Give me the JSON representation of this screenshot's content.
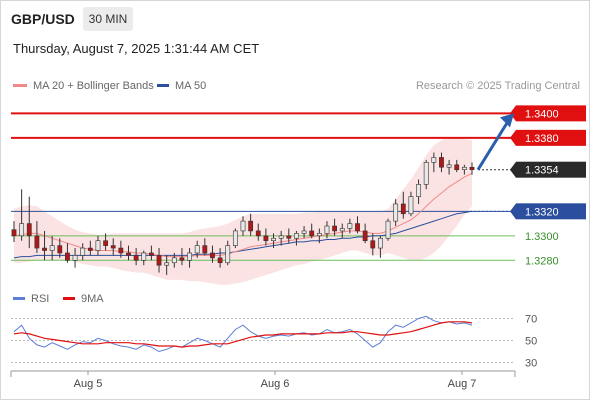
{
  "header": {
    "symbol": "GBP/USD",
    "timeframe": "30 MIN",
    "datetime": "Thursday, August 7, 2025 1:31:44 AM CET"
  },
  "legend": {
    "ma20_label": "MA 20 + Bollinger Bands",
    "ma50_label": "MA 50",
    "copyright": "Research © 2025 Trading Central",
    "rsi_label": "RSI",
    "rsi_ma_label": "9MA"
  },
  "colors": {
    "ma20": "#f08a8a",
    "ma50": "#2b4f9e",
    "bollinger_fill": "#fbe3e3",
    "resistance": "#e01010",
    "support": "#2b4f9e",
    "target": "#6bbf5b",
    "arrow": "#2b5fad",
    "candle_up": "#e8e8e8",
    "candle_down": "#b01717",
    "rsi": "#5b7fd6",
    "rsi_ma": "#e01010"
  },
  "chart_data": [
    {
      "type": "candlestick",
      "x_tick_labels": [
        "Aug 5",
        "Aug 6",
        "Aug 7"
      ],
      "ylim": [
        1.3268,
        1.3415
      ],
      "levels": [
        {
          "value": 1.34,
          "label": "1.3400",
          "kind": "resistance"
        },
        {
          "value": 1.338,
          "label": "1.3380",
          "kind": "resistance"
        },
        {
          "value": 1.3354,
          "label": "1.3354",
          "kind": "last"
        },
        {
          "value": 1.332,
          "label": "1.3320",
          "kind": "pivot"
        },
        {
          "value": 1.33,
          "label": "1.3300",
          "kind": "target"
        },
        {
          "value": 1.328,
          "label": "1.3280",
          "kind": "target"
        }
      ],
      "arrow": {
        "from": 1.3354,
        "to": 1.34
      },
      "candles": [
        [
          1.3305,
          1.3312,
          1.3295,
          1.33
        ],
        [
          1.33,
          1.3338,
          1.3296,
          1.331
        ],
        [
          1.331,
          1.3332,
          1.329,
          1.33
        ],
        [
          1.33,
          1.3312,
          1.3286,
          1.329
        ],
        [
          1.329,
          1.3304,
          1.328,
          1.3288
        ],
        [
          1.3288,
          1.33,
          1.328,
          1.3292
        ],
        [
          1.3292,
          1.3298,
          1.3282,
          1.3286
        ],
        [
          1.3286,
          1.3294,
          1.3278,
          1.328
        ],
        [
          1.328,
          1.329,
          1.3274,
          1.3284
        ],
        [
          1.3284,
          1.3294,
          1.328,
          1.329
        ],
        [
          1.329,
          1.3296,
          1.3284,
          1.3288
        ],
        [
          1.3288,
          1.33,
          1.3284,
          1.3296
        ],
        [
          1.3296,
          1.3302,
          1.3288,
          1.3292
        ],
        [
          1.3292,
          1.3298,
          1.3284,
          1.329
        ],
        [
          1.329,
          1.3296,
          1.3282,
          1.3286
        ],
        [
          1.3286,
          1.3292,
          1.328,
          1.3284
        ],
        [
          1.3284,
          1.329,
          1.3276,
          1.328
        ],
        [
          1.328,
          1.3288,
          1.3276,
          1.3286
        ],
        [
          1.3286,
          1.3292,
          1.328,
          1.3284
        ],
        [
          1.3284,
          1.329,
          1.327,
          1.3276
        ],
        [
          1.3276,
          1.3284,
          1.3268,
          1.3278
        ],
        [
          1.3278,
          1.3286,
          1.3274,
          1.3282
        ],
        [
          1.3282,
          1.329,
          1.3276,
          1.328
        ],
        [
          1.328,
          1.329,
          1.3274,
          1.3286
        ],
        [
          1.3286,
          1.3296,
          1.3282,
          1.3292
        ],
        [
          1.3292,
          1.3298,
          1.3284,
          1.3286
        ],
        [
          1.3286,
          1.3292,
          1.3278,
          1.3282
        ],
        [
          1.3282,
          1.329,
          1.3274,
          1.3278
        ],
        [
          1.3278,
          1.3296,
          1.3276,
          1.3292
        ],
        [
          1.3292,
          1.3306,
          1.329,
          1.3304
        ],
        [
          1.3304,
          1.3316,
          1.33,
          1.3312
        ],
        [
          1.3312,
          1.3318,
          1.33,
          1.3304
        ],
        [
          1.3304,
          1.331,
          1.3296,
          1.33
        ],
        [
          1.33,
          1.3306,
          1.3292,
          1.3296
        ],
        [
          1.3296,
          1.3302,
          1.329,
          1.3298
        ],
        [
          1.3298,
          1.3304,
          1.3292,
          1.33
        ],
        [
          1.33,
          1.3306,
          1.3294,
          1.3298
        ],
        [
          1.3298,
          1.3304,
          1.3292,
          1.3302
        ],
        [
          1.3302,
          1.3308,
          1.3298,
          1.3304
        ],
        [
          1.3304,
          1.331,
          1.3298,
          1.33
        ],
        [
          1.33,
          1.3306,
          1.3294,
          1.3302
        ],
        [
          1.3302,
          1.3312,
          1.3298,
          1.3308
        ],
        [
          1.3308,
          1.3314,
          1.33,
          1.3304
        ],
        [
          1.3304,
          1.331,
          1.3298,
          1.3306
        ],
        [
          1.3306,
          1.3314,
          1.3302,
          1.331
        ],
        [
          1.331,
          1.3316,
          1.3302,
          1.3304
        ],
        [
          1.3304,
          1.331,
          1.3294,
          1.3296
        ],
        [
          1.3296,
          1.3302,
          1.3284,
          1.329
        ],
        [
          1.329,
          1.33,
          1.3282,
          1.3298
        ],
        [
          1.3298,
          1.3314,
          1.3296,
          1.3312
        ],
        [
          1.3312,
          1.333,
          1.3308,
          1.3326
        ],
        [
          1.3326,
          1.3336,
          1.3314,
          1.3318
        ],
        [
          1.3318,
          1.3336,
          1.3316,
          1.3332
        ],
        [
          1.3332,
          1.3346,
          1.3326,
          1.3342
        ],
        [
          1.3342,
          1.3362,
          1.3338,
          1.336
        ],
        [
          1.336,
          1.3368,
          1.3352,
          1.3364
        ],
        [
          1.3364,
          1.3368,
          1.3352,
          1.3356
        ],
        [
          1.3356,
          1.3362,
          1.335,
          1.3358
        ],
        [
          1.3358,
          1.3362,
          1.3352,
          1.3354
        ],
        [
          1.3354,
          1.3358,
          1.335,
          1.3356
        ],
        [
          1.3356,
          1.336,
          1.335,
          1.3354
        ]
      ],
      "ma20": [
        1.33,
        1.3301,
        1.3302,
        1.3302,
        1.33,
        1.3298,
        1.3296,
        1.3294,
        1.3292,
        1.329,
        1.3289,
        1.3288,
        1.3288,
        1.3288,
        1.3287,
        1.3287,
        1.3286,
        1.3286,
        1.3285,
        1.3284,
        1.3283,
        1.3283,
        1.3283,
        1.3283,
        1.3284,
        1.3284,
        1.3284,
        1.3284,
        1.3285,
        1.3287,
        1.3289,
        1.3291,
        1.3292,
        1.3293,
        1.3294,
        1.3295,
        1.3296,
        1.3297,
        1.3298,
        1.3299,
        1.33,
        1.3301,
        1.3302,
        1.3303,
        1.3304,
        1.3304,
        1.3303,
        1.3302,
        1.3302,
        1.3304,
        1.3307,
        1.331,
        1.3313,
        1.3318,
        1.3324,
        1.333,
        1.3335,
        1.334,
        1.3344,
        1.3348,
        1.3351
      ],
      "bollinger_upper": [
        1.3322,
        1.3324,
        1.3325,
        1.3324,
        1.332,
        1.3316,
        1.3312,
        1.3308,
        1.3305,
        1.3303,
        1.3302,
        1.3301,
        1.3301,
        1.3302,
        1.3302,
        1.3302,
        1.3302,
        1.3302,
        1.3302,
        1.3302,
        1.3302,
        1.3302,
        1.3302,
        1.3303,
        1.3305,
        1.3306,
        1.3307,
        1.3308,
        1.331,
        1.3313,
        1.3316,
        1.3318,
        1.3318,
        1.3318,
        1.3318,
        1.3318,
        1.3318,
        1.3318,
        1.3319,
        1.3319,
        1.332,
        1.332,
        1.332,
        1.332,
        1.332,
        1.332,
        1.332,
        1.332,
        1.332,
        1.3322,
        1.333,
        1.3338,
        1.3346,
        1.3356,
        1.3366,
        1.3374,
        1.3378,
        1.338,
        1.338,
        1.3379,
        1.3378
      ],
      "bollinger_lower": [
        1.3278,
        1.3278,
        1.3279,
        1.328,
        1.328,
        1.328,
        1.328,
        1.328,
        1.3279,
        1.3277,
        1.3276,
        1.3275,
        1.3275,
        1.3274,
        1.3272,
        1.3271,
        1.327,
        1.327,
        1.3268,
        1.3266,
        1.3264,
        1.3264,
        1.3264,
        1.3263,
        1.3263,
        1.3262,
        1.3261,
        1.326,
        1.326,
        1.3261,
        1.3262,
        1.3264,
        1.3266,
        1.3268,
        1.327,
        1.3272,
        1.3274,
        1.3276,
        1.3277,
        1.3279,
        1.328,
        1.3282,
        1.3284,
        1.3286,
        1.3288,
        1.3288,
        1.3286,
        1.3284,
        1.3284,
        1.3286,
        1.3284,
        1.3282,
        1.328,
        1.328,
        1.3282,
        1.3286,
        1.3292,
        1.33,
        1.3308,
        1.3317,
        1.3324
      ],
      "ma50": [
        1.3282,
        1.3283,
        1.3283,
        1.3284,
        1.3284,
        1.3284,
        1.3284,
        1.3284,
        1.3284,
        1.3284,
        1.3284,
        1.3284,
        1.3284,
        1.3284,
        1.3284,
        1.3284,
        1.3284,
        1.3284,
        1.3284,
        1.3284,
        1.3284,
        1.3284,
        1.3284,
        1.3284,
        1.3285,
        1.3285,
        1.3285,
        1.3286,
        1.3286,
        1.3287,
        1.3288,
        1.3289,
        1.329,
        1.3291,
        1.3292,
        1.3293,
        1.3294,
        1.3295,
        1.3295,
        1.3296,
        1.3296,
        1.3297,
        1.3297,
        1.3298,
        1.3298,
        1.3299,
        1.3299,
        1.33,
        1.33,
        1.3301,
        1.3302,
        1.3304,
        1.3306,
        1.3308,
        1.331,
        1.3312,
        1.3314,
        1.3316,
        1.3318,
        1.3319,
        1.332
      ]
    },
    {
      "type": "line",
      "series": [
        {
          "name": "RSI",
          "values": [
            58,
            64,
            52,
            46,
            44,
            48,
            45,
            42,
            46,
            49,
            48,
            52,
            50,
            47,
            45,
            44,
            42,
            46,
            44,
            40,
            42,
            45,
            44,
            48,
            52,
            50,
            47,
            44,
            52,
            60,
            64,
            58,
            54,
            52,
            54,
            55,
            54,
            56,
            57,
            55,
            56,
            60,
            57,
            58,
            60,
            56,
            50,
            44,
            48,
            58,
            64,
            62,
            66,
            70,
            72,
            68,
            66,
            67,
            65,
            66,
            64
          ]
        },
        {
          "name": "9MA",
          "values": [
            56,
            57,
            56,
            54,
            52,
            51,
            50,
            49,
            48,
            47,
            47,
            47,
            48,
            48,
            48,
            48,
            47,
            47,
            46,
            45,
            45,
            45,
            44,
            45,
            45,
            46,
            47,
            47,
            47,
            49,
            51,
            53,
            54,
            55,
            55,
            56,
            56,
            56,
            56,
            56,
            56,
            57,
            57,
            57,
            58,
            58,
            57,
            56,
            55,
            55,
            56,
            57,
            58,
            60,
            62,
            64,
            66,
            67,
            67,
            67,
            66
          ]
        }
      ],
      "ylim": [
        25,
        75
      ],
      "y_ticks": [
        70,
        50,
        30
      ],
      "y_tick_labels": [
        "70",
        "50",
        "30"
      ]
    }
  ]
}
